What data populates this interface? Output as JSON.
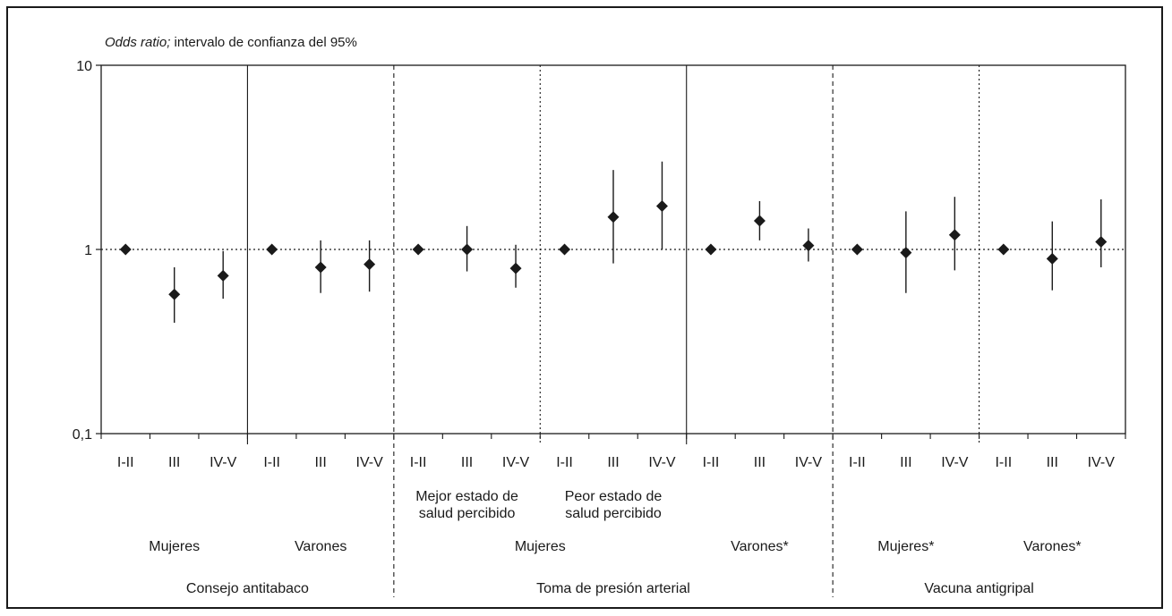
{
  "chart_data": {
    "type": "scatter",
    "title": "",
    "ylabel_italic": "Odds ratio;",
    "ylabel_rest": " intervalo de confianza del 95%",
    "yscale": "log",
    "ylim": [
      0.1,
      10
    ],
    "yticks": [
      {
        "value": 0.1,
        "label": "0,1"
      },
      {
        "value": 1,
        "label": "1"
      },
      {
        "value": 10,
        "label": "10"
      }
    ],
    "reference_line": 1,
    "categories": [
      "I-II",
      "III",
      "IV-V",
      "I-II",
      "III",
      "IV-V",
      "I-II",
      "III",
      "IV-V",
      "I-II",
      "III",
      "IV-V",
      "I-II",
      "III",
      "IV-V",
      "I-II",
      "III",
      "IV-V",
      "I-II",
      "III",
      "IV-V"
    ],
    "series": [
      {
        "values": [
          1,
          0.57,
          0.72,
          1,
          0.8,
          0.83,
          1,
          1.0,
          0.79,
          1,
          1.5,
          1.72,
          1,
          1.43,
          1.05,
          1,
          0.96,
          1.2,
          1,
          0.89,
          1.1
        ],
        "ci_low": [
          1,
          0.4,
          0.54,
          1,
          0.58,
          0.59,
          1,
          0.76,
          0.62,
          1,
          0.84,
          1.0,
          1,
          1.12,
          0.86,
          1,
          0.58,
          0.77,
          1,
          0.6,
          0.8
        ],
        "ci_high": [
          1,
          0.8,
          0.98,
          1,
          1.12,
          1.12,
          1,
          1.34,
          1.06,
          1,
          2.7,
          3.0,
          1,
          1.83,
          1.3,
          1,
          1.61,
          1.93,
          1,
          1.42,
          1.87
        ]
      }
    ],
    "subgroup_labels": [
      {
        "lines": [
          "Mejor estado de",
          "salud percibido"
        ],
        "group": 2
      },
      {
        "lines": [
          "Peor estado de",
          "salud percibido"
        ],
        "group": 3
      }
    ],
    "sex_labels": [
      {
        "text": "Mujeres",
        "groups": [
          0,
          0
        ]
      },
      {
        "text": "Varones",
        "groups": [
          1,
          1
        ]
      },
      {
        "text": "Mujeres",
        "groups": [
          2,
          3
        ]
      },
      {
        "text": "Varones*",
        "groups": [
          4,
          4
        ]
      },
      {
        "text": "Mujeres*",
        "groups": [
          5,
          5
        ]
      },
      {
        "text": "Varones*",
        "groups": [
          6,
          6
        ]
      }
    ],
    "outcome_labels": [
      {
        "text": "Consejo antitabaco",
        "groups": [
          0,
          1
        ]
      },
      {
        "text": "Toma de presión arterial",
        "groups": [
          2,
          4
        ]
      },
      {
        "text": "Vacuna antigripal",
        "groups": [
          5,
          6
        ]
      }
    ],
    "separators": [
      {
        "after_group": 0,
        "style": "solid",
        "extends_below": false
      },
      {
        "after_group": 1,
        "style": "dashed",
        "extends_below": true
      },
      {
        "after_group": 2,
        "style": "dotted",
        "extends_below": false
      },
      {
        "after_group": 3,
        "style": "solid",
        "extends_below": false
      },
      {
        "after_group": 4,
        "style": "dashed",
        "extends_below": true
      },
      {
        "after_group": 5,
        "style": "dotted",
        "extends_below": false
      }
    ],
    "grid": false,
    "legend": "none"
  }
}
